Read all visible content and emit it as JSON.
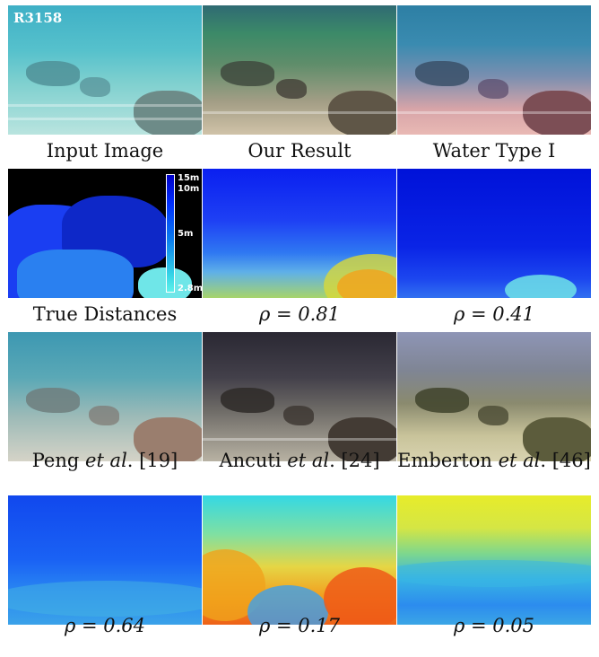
{
  "figure": {
    "scene_id": "R3158",
    "row1": [
      {
        "caption": "Input Image"
      },
      {
        "caption": "Our Result"
      },
      {
        "caption": "Water Type I"
      }
    ],
    "row2": [
      {
        "caption": "True Distances"
      },
      {
        "caption": "ρ = 0.81"
      },
      {
        "caption": "ρ = 0.41"
      }
    ],
    "row3": [
      {
        "caption_name": "Peng",
        "caption_etal": "et al",
        "caption_ref": ". [19]"
      },
      {
        "caption_name": "Ancuti",
        "caption_etal": "et al",
        "caption_ref": ". [24]"
      },
      {
        "caption_name": "Emberton",
        "caption_etal": "et al",
        "caption_ref": ". [46]"
      }
    ],
    "row4": [
      {
        "caption": "ρ = 0.64"
      },
      {
        "caption": "ρ = 0.17"
      },
      {
        "caption": "ρ = 0.05"
      }
    ],
    "colorbar_labels": [
      "15m",
      "10m",
      "5m",
      "2.8m"
    ]
  }
}
